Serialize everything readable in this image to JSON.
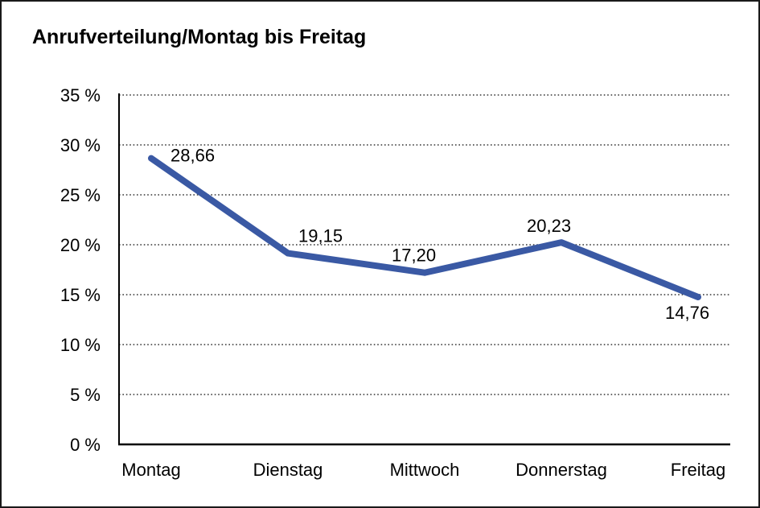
{
  "chart_data": {
    "type": "line",
    "title": "Anrufverteilung/Montag bis Freitag",
    "categories": [
      "Montag",
      "Dienstag",
      "Mittwoch",
      "Donnerstag",
      "Freitag"
    ],
    "series": [
      {
        "name": "Anrufverteilung",
        "values": [
          28.66,
          19.15,
          17.2,
          20.23,
          14.76
        ],
        "data_labels": [
          "28,66",
          "19,15",
          "17,20",
          "20,23",
          "14,76"
        ]
      }
    ],
    "xlabel": "",
    "ylabel": "",
    "y_ticks": [
      0,
      5,
      10,
      15,
      20,
      25,
      30,
      35
    ],
    "y_tick_labels": [
      "0 %",
      "5 %",
      "10 %",
      "15 %",
      "20 %",
      "25 %",
      "30 %",
      "35 %"
    ],
    "ylim": [
      0,
      35
    ],
    "grid": "horizontal-dotted",
    "legend": "none",
    "colors": {
      "line": "#3A59A4",
      "text": "#000000",
      "grid": "#333333",
      "axis": "#000000",
      "background": "#FFFFFF",
      "frame_border": "#1A1A1A"
    }
  }
}
